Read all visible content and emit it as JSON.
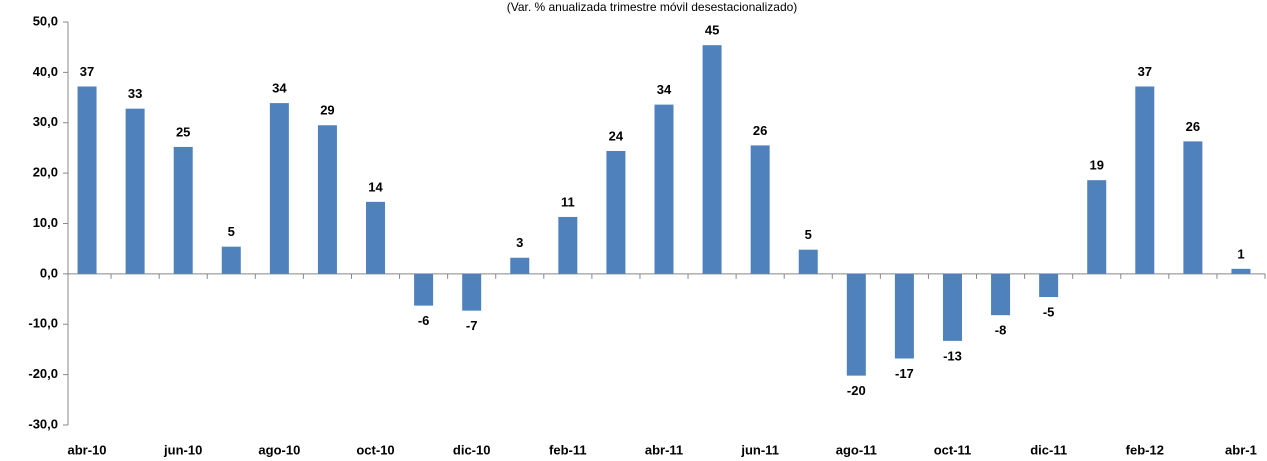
{
  "chart_data": {
    "type": "bar",
    "subtitle": "(Var. % anualizada trimestre móvil desestacionalizado)",
    "categories": [
      "abr-10",
      null,
      "jun-10",
      null,
      "ago-10",
      null,
      "oct-10",
      null,
      "dic-10",
      null,
      "feb-11",
      null,
      "abr-11",
      null,
      "jun-11",
      null,
      "ago-11",
      null,
      "oct-11",
      null,
      "dic-11",
      null,
      "feb-12",
      null,
      "abr-1"
    ],
    "values": [
      37.2,
      32.8,
      25.2,
      5.4,
      33.9,
      29.5,
      14.3,
      -6.3,
      -7.3,
      3.2,
      11.3,
      24.4,
      33.6,
      45.4,
      25.5,
      4.8,
      -20.2,
      -16.8,
      -13.3,
      -8.2,
      -4.6,
      18.6,
      37.2,
      26.3,
      1.0
    ],
    "value_labels": [
      "37",
      "33",
      "25",
      "5",
      "34",
      "29",
      "14",
      "-6",
      "-7",
      "3",
      "11",
      "24",
      "34",
      "45",
      "26",
      "5",
      "-20",
      "-17",
      "-13",
      "-8",
      "-5",
      "19",
      "37",
      "26",
      "1"
    ],
    "color": "#4f81bd",
    "ylim": [
      -30,
      50
    ],
    "yticks": [
      {
        "value": -30,
        "label": "-30,0"
      },
      {
        "value": -20,
        "label": "-20,0"
      },
      {
        "value": -10,
        "label": "-10,0"
      },
      {
        "value": 0,
        "label": "0,0"
      },
      {
        "value": 10,
        "label": "10,0"
      },
      {
        "value": 20,
        "label": "20,0"
      },
      {
        "value": 30,
        "label": "30,0"
      },
      {
        "value": 40,
        "label": "40,0"
      },
      {
        "value": 50,
        "label": "50,0"
      }
    ],
    "grid": false
  }
}
